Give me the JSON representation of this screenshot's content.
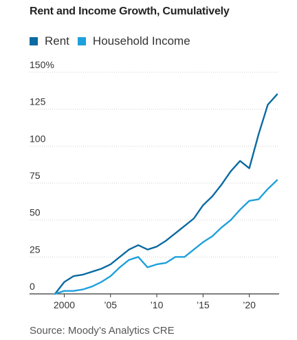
{
  "chart_data": {
    "type": "line",
    "title": "Rent and Income Growth, Cumulatively",
    "source": "Source: Moody’s Analytics CRE",
    "xlabel": "",
    "ylabel": "",
    "ylim": [
      0,
      150
    ],
    "xlim": [
      1999,
      2023
    ],
    "y_ticks": [
      {
        "value": 150,
        "label": "150%"
      },
      {
        "value": 125,
        "label": "125"
      },
      {
        "value": 100,
        "label": "100"
      },
      {
        "value": 75,
        "label": "75"
      },
      {
        "value": 50,
        "label": "50"
      },
      {
        "value": 25,
        "label": "25"
      },
      {
        "value": 0,
        "label": "0"
      }
    ],
    "x_ticks": [
      {
        "value": 2000,
        "label": "2000"
      },
      {
        "value": 2005,
        "label": "’05"
      },
      {
        "value": 2010,
        "label": "’10"
      },
      {
        "value": 2015,
        "label": "’15"
      },
      {
        "value": 2020,
        "label": "’20"
      }
    ],
    "grid": "horizontal",
    "legend_position": "top-left",
    "x": [
      1999,
      2000,
      2001,
      2002,
      2003,
      2004,
      2005,
      2006,
      2007,
      2008,
      2009,
      2010,
      2011,
      2012,
      2013,
      2014,
      2015,
      2016,
      2017,
      2018,
      2019,
      2020,
      2021,
      2022,
      2023
    ],
    "series": [
      {
        "name": "Rent",
        "color": "#0a6aa1",
        "values": [
          0,
          8,
          12,
          13,
          15,
          17,
          20,
          25,
          30,
          33,
          30,
          32,
          36,
          41,
          46,
          51,
          60,
          66,
          74,
          83,
          90,
          85,
          108,
          128,
          135
        ]
      },
      {
        "name": "Household Income",
        "color": "#1ea0dc",
        "values": [
          0,
          2,
          2,
          3,
          5,
          8,
          12,
          18,
          23,
          25,
          18,
          20,
          21,
          25,
          25,
          30,
          35,
          39,
          45,
          50,
          57,
          63,
          64,
          71,
          77
        ]
      }
    ]
  }
}
